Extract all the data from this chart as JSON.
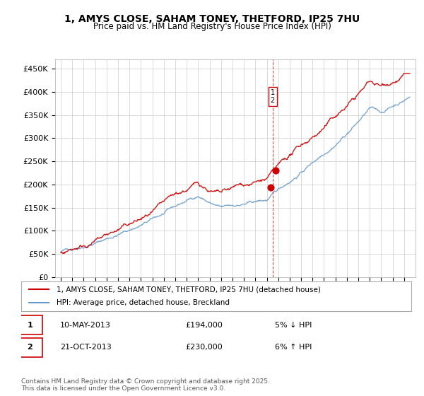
{
  "title1": "1, AMYS CLOSE, SAHAM TONEY, THETFORD, IP25 7HU",
  "title2": "Price paid vs. HM Land Registry's House Price Index (HPI)",
  "legend1": "1, AMYS CLOSE, SAHAM TONEY, THETFORD, IP25 7HU (detached house)",
  "legend2": "HPI: Average price, detached house, Breckland",
  "sale1_label": "1",
  "sale1_date": "10-MAY-2013",
  "sale1_price": "£194,000",
  "sale1_hpi": "5% ↓ HPI",
  "sale2_label": "2",
  "sale2_date": "21-OCT-2013",
  "sale2_price": "£230,000",
  "sale2_hpi": "6% ↑ HPI",
  "footer": "Contains HM Land Registry data © Crown copyright and database right 2025.\nThis data is licensed under the Open Government Licence v3.0.",
  "red_color": "#cc0000",
  "blue_color": "#6699cc",
  "background_color": "#ffffff",
  "grid_color": "#cccccc",
  "ylim": [
    0,
    470000
  ],
  "yticks": [
    0,
    50000,
    100000,
    150000,
    200000,
    250000,
    300000,
    350000,
    400000,
    450000
  ],
  "ylabel_format": "£{0}K",
  "start_year": 1995,
  "end_year": 2025,
  "marker1_year": 2013.35,
  "marker1_value": 194000,
  "marker2_year": 2013.8,
  "marker2_value": 230000
}
